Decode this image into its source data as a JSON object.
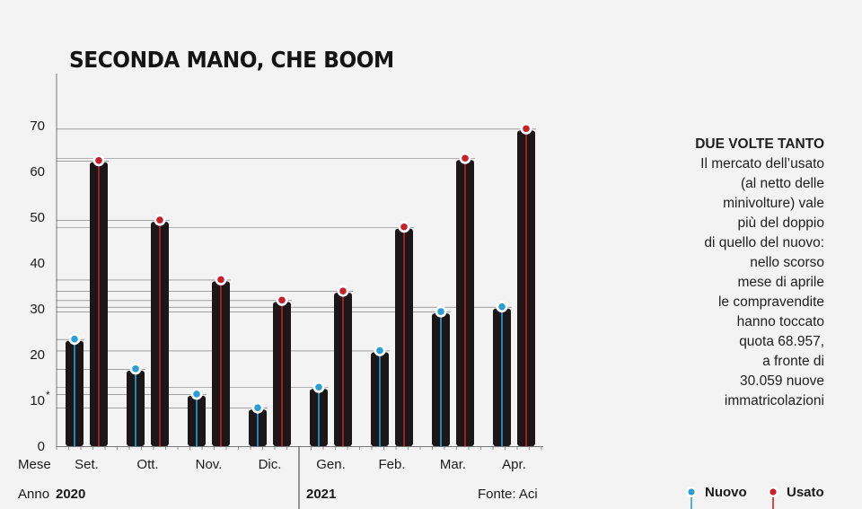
{
  "title": "SECONDA MANO, CHE BOOM",
  "side_note": {
    "heading": "DUE VOLTE TANTO",
    "lines": [
      "Il mercato dell’usato",
      "(al netto delle",
      "minivolture) vale",
      "più del doppio",
      "di quello del nuovo:",
      "nello scorso",
      "mese di aprile",
      "le compravendite",
      "hanno toccato",
      "quota 68.957,",
      "a fronte di",
      "30.059 nuove",
      "immatricolazioni"
    ]
  },
  "axis_labels": {
    "month_label": "Mese",
    "year_label": "Anno",
    "year_2020": "2020",
    "year_2021": "2021",
    "asterisk": "*"
  },
  "source": "Fonte: Aci",
  "legend": {
    "nuovo": "Nuovo",
    "usato": "Usato"
  },
  "colors": {
    "background": "#f3f3f3",
    "bar": "#1b1718",
    "nuovo": "#2a9fd6",
    "usato": "#c8202a",
    "axis": "#777777",
    "gridline": "#6e6e6e"
  },
  "chart_data": {
    "type": "bar",
    "categories": [
      "Set.",
      "Ott.",
      "Nov.",
      "Dic.",
      "Gen.",
      "Feb.",
      "Mar.",
      "Apr."
    ],
    "series": [
      {
        "name": "Nuovo",
        "values": [
          23,
          16.5,
          11,
          8,
          12.5,
          20.5,
          29,
          30.059
        ]
      },
      {
        "name": "Usato",
        "values": [
          62,
          49,
          36,
          31.5,
          33.5,
          47.5,
          62.5,
          68.957
        ]
      }
    ],
    "yticks": [
      0,
      10,
      20,
      30,
      40,
      50,
      60,
      70
    ],
    "ylim": [
      0,
      70
    ],
    "title": "SECONDA MANO, CHE BOOM",
    "xlabel": "Mese",
    "ylabel": "",
    "legend_position": "bottom-right",
    "grid": false
  }
}
